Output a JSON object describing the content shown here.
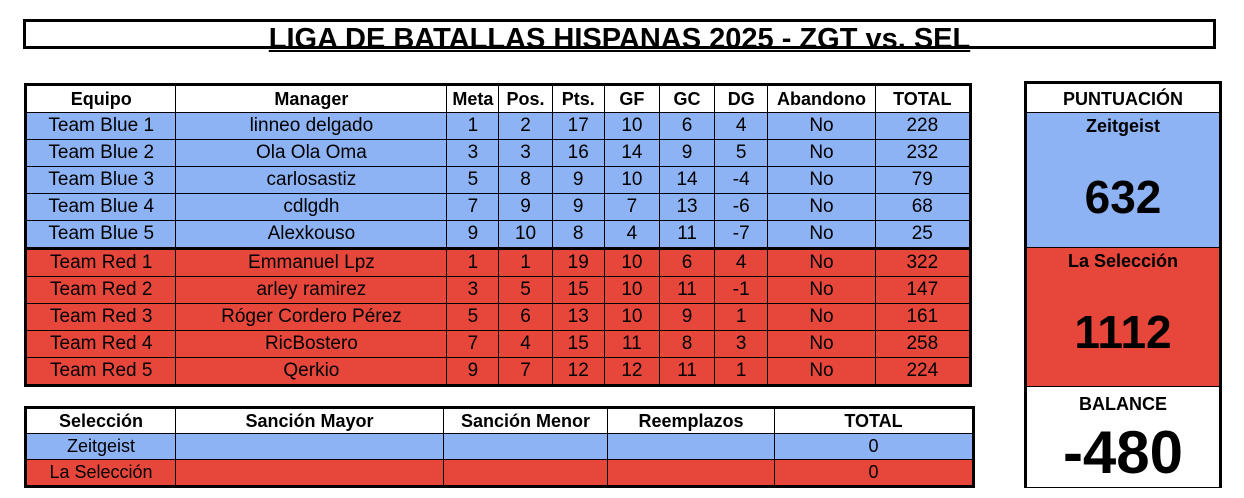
{
  "title": "LIGA DE BATALLAS HISPANAS 2025 - ZGT vs. SEL",
  "main_table": {
    "headers": [
      "Equipo",
      "Manager",
      "Meta",
      "Pos.",
      "Pts.",
      "GF",
      "GC",
      "DG",
      "Abandono",
      "TOTAL"
    ],
    "rows": [
      {
        "team": "Team Blue 1",
        "manager": "linneo delgado",
        "meta": "1",
        "pos": "2",
        "pts": "17",
        "gf": "10",
        "gc": "6",
        "dg": "4",
        "abandono": "No",
        "total": "228"
      },
      {
        "team": "Team Blue 2",
        "manager": "Ola Ola Oma",
        "meta": "3",
        "pos": "3",
        "pts": "16",
        "gf": "14",
        "gc": "9",
        "dg": "5",
        "abandono": "No",
        "total": "232"
      },
      {
        "team": "Team Blue 3",
        "manager": "carlosastiz",
        "meta": "5",
        "pos": "8",
        "pts": "9",
        "gf": "10",
        "gc": "14",
        "dg": "-4",
        "abandono": "No",
        "total": "79"
      },
      {
        "team": "Team Blue 4",
        "manager": "cdlgdh",
        "meta": "7",
        "pos": "9",
        "pts": "9",
        "gf": "7",
        "gc": "13",
        "dg": "-6",
        "abandono": "No",
        "total": "68"
      },
      {
        "team": "Team Blue 5",
        "manager": "Alexkouso",
        "meta": "9",
        "pos": "10",
        "pts": "8",
        "gf": "4",
        "gc": "11",
        "dg": "-7",
        "abandono": "No",
        "total": "25"
      },
      {
        "team": "Team Red 1",
        "manager": "Emmanuel Lpz",
        "meta": "1",
        "pos": "1",
        "pts": "19",
        "gf": "10",
        "gc": "6",
        "dg": "4",
        "abandono": "No",
        "total": "322"
      },
      {
        "team": "Team Red 2",
        "manager": "arley ramirez",
        "meta": "3",
        "pos": "5",
        "pts": "15",
        "gf": "10",
        "gc": "11",
        "dg": "-1",
        "abandono": "No",
        "total": "147"
      },
      {
        "team": "Team Red 3",
        "manager": "Róger Cordero Pérez",
        "meta": "5",
        "pos": "6",
        "pts": "13",
        "gf": "10",
        "gc": "9",
        "dg": "1",
        "abandono": "No",
        "total": "161"
      },
      {
        "team": "Team Red 4",
        "manager": "RicBostero",
        "meta": "7",
        "pos": "4",
        "pts": "15",
        "gf": "11",
        "gc": "8",
        "dg": "3",
        "abandono": "No",
        "total": "258"
      },
      {
        "team": "Team Red 5",
        "manager": "Qerkio",
        "meta": "9",
        "pos": "7",
        "pts": "12",
        "gf": "12",
        "gc": "11",
        "dg": "1",
        "abandono": "No",
        "total": "224"
      }
    ]
  },
  "penalty_table": {
    "headers": [
      "Selección",
      "Sanción Mayor",
      "Sanción Menor",
      "Reemplazos",
      "TOTAL"
    ],
    "rows": [
      {
        "team": "Zeitgeist",
        "major": "",
        "minor": "",
        "replacements": "",
        "total": "0"
      },
      {
        "team": "La Selección",
        "major": "",
        "minor": "",
        "replacements": "",
        "total": "0"
      }
    ]
  },
  "score_panel": {
    "header": "PUNTUACIÓN",
    "team_a": {
      "name": "Zeitgeist",
      "score": "632"
    },
    "team_b": {
      "name": "La Selección",
      "score": "1112"
    },
    "balance_label": "BALANCE",
    "balance": "-480"
  },
  "colors": {
    "blue": "#8db3f5",
    "red": "#e7473b"
  }
}
